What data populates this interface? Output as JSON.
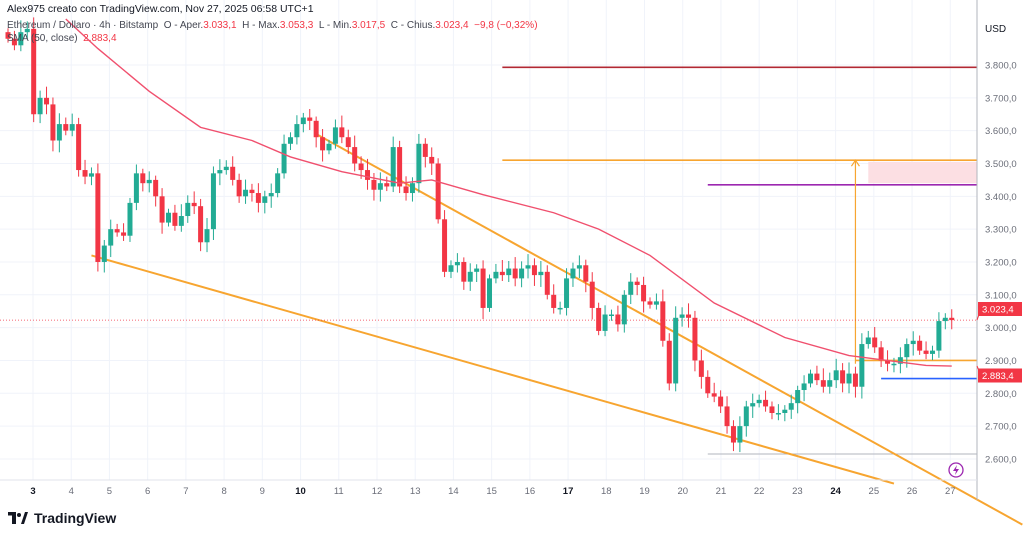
{
  "header": {
    "credit": "Alex975 creato con TradingView.com, Nov 27, 2025 06:58 UTC+1",
    "symbol": "Ethereum / Dollaro · 4h · Bitstamp",
    "open_label": "O - Aper.",
    "open": "3.033,1",
    "high_label": "H - Max.",
    "high": "3.053,3",
    "low_label": "L - Min.",
    "low": "3.017,5",
    "close_label": "C - Chius.",
    "close": "3.023,4",
    "change": "−9,8 (−0,32%)",
    "indicator": "SMA (50, close)",
    "indicator_value": "2.883,4"
  },
  "logo": "TradingView",
  "colors": {
    "up": "#22ab94",
    "down": "#f23645",
    "sma": "#f0506e",
    "trend": "#f7a530",
    "grid": "#f0f3fa"
  },
  "chart_data": {
    "type": "candlestick",
    "currency": "USD",
    "interval": "4h",
    "ylim": [
      2530,
      3950
    ],
    "y_ticks": [
      3800,
      3700,
      3600,
      3500,
      3400,
      3300,
      3200,
      3100,
      3000,
      2900,
      2800,
      2700,
      2600
    ],
    "y_tick_labels": [
      "3.800,0",
      "3.700,0",
      "3.600,0",
      "3.500,0",
      "3.400,0",
      "3.300,0",
      "3.200,0",
      "3.100,0",
      "3.000,0",
      "2.900,0",
      "2.800,0",
      "2.700,0",
      "2.600,0"
    ],
    "x_tick_labels": [
      "3",
      "4",
      "5",
      "6",
      "7",
      "8",
      "9",
      "10",
      "11",
      "12",
      "13",
      "14",
      "15",
      "16",
      "17",
      "18",
      "19",
      "20",
      "21",
      "22",
      "23",
      "24",
      "25",
      "26",
      "27"
    ],
    "x_bold_labels": [
      "3",
      "10",
      "17",
      "24"
    ],
    "closes": [
      3880,
      3860,
      3900,
      3910,
      3650,
      3700,
      3680,
      3570,
      3620,
      3600,
      3620,
      3480,
      3460,
      3470,
      3200,
      3250,
      3300,
      3290,
      3280,
      3380,
      3470,
      3440,
      3450,
      3400,
      3320,
      3350,
      3310,
      3340,
      3380,
      3370,
      3260,
      3300,
      3470,
      3480,
      3490,
      3450,
      3400,
      3420,
      3410,
      3380,
      3400,
      3410,
      3470,
      3560,
      3580,
      3620,
      3640,
      3630,
      3580,
      3540,
      3560,
      3610,
      3580,
      3550,
      3500,
      3480,
      3450,
      3420,
      3440,
      3430,
      3550,
      3430,
      3410,
      3440,
      3560,
      3520,
      3500,
      3330,
      3170,
      3190,
      3200,
      3140,
      3170,
      3180,
      3060,
      3150,
      3170,
      3160,
      3180,
      3150,
      3180,
      3190,
      3160,
      3170,
      3100,
      3060,
      3060,
      3150,
      3180,
      3190,
      3140,
      3060,
      2990,
      3040,
      3040,
      3010,
      3100,
      3140,
      3130,
      3080,
      3070,
      3080,
      2960,
      2830,
      3030,
      3040,
      3030,
      2900,
      2850,
      2800,
      2790,
      2760,
      2700,
      2650,
      2700,
      2760,
      2770,
      2780,
      2760,
      2740,
      2740,
      2750,
      2770,
      2810,
      2830,
      2860,
      2840,
      2820,
      2840,
      2870,
      2830,
      2860,
      2820,
      2950,
      2970,
      2940,
      2900,
      2890,
      2890,
      2910,
      2950,
      2960,
      2930,
      2920,
      2930,
      3020,
      3030,
      3023
    ],
    "sma_50": [
      [
        9,
        3940
      ],
      [
        14,
        3850
      ],
      [
        22,
        3720
      ],
      [
        30,
        3610
      ],
      [
        38,
        3570
      ],
      [
        44,
        3520
      ],
      [
        52,
        3475
      ],
      [
        61,
        3440
      ],
      [
        66,
        3450
      ],
      [
        74,
        3405
      ],
      [
        85,
        3350
      ],
      [
        92,
        3300
      ],
      [
        100,
        3220
      ],
      [
        110,
        3075
      ],
      [
        121,
        2970
      ],
      [
        131,
        2915
      ],
      [
        143,
        2885
      ],
      [
        147,
        2883
      ]
    ],
    "last_price_label": "3.023,4",
    "sma_price_label": "2.883,4",
    "trendlines": [
      {
        "from": [
          48,
          3590
        ],
        "to": [
          158,
          2400
        ]
      },
      {
        "from": [
          13,
          3220
        ],
        "to": [
          138,
          2525
        ]
      }
    ],
    "levels": [
      {
        "price": 3793,
        "from": 77,
        "color": "#b22833"
      },
      {
        "price": 3510,
        "from": 77,
        "color": "#f7a530"
      },
      {
        "price": 3435,
        "from": 109,
        "color": "#9c27b0"
      },
      {
        "price": 2900,
        "from": 132,
        "color": "#f7a530"
      },
      {
        "price": 2845,
        "from": 136,
        "color": "#2962ff"
      },
      {
        "price": 2615,
        "from": 109,
        "color": "#b2b5be"
      }
    ],
    "target_zone": {
      "from": 134,
      "top": 3505,
      "bottom": 3440
    },
    "projection_arrow": {
      "at": 132,
      "from": 2890,
      "to": 3510
    }
  }
}
